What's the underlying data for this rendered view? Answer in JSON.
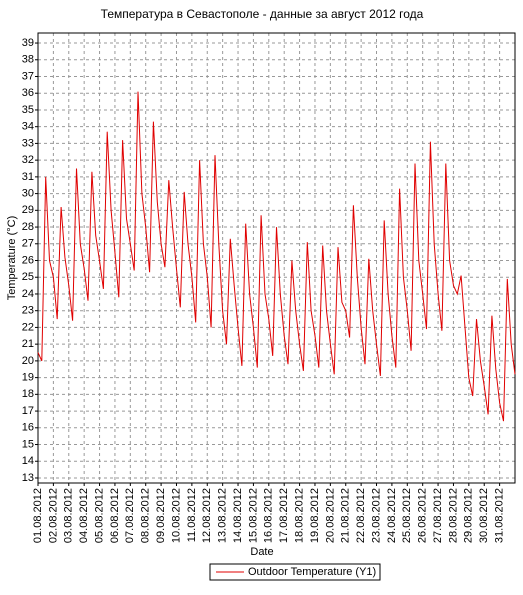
{
  "chart_data": {
    "type": "line",
    "title": "Температура в Севастополе - данные за август 2012 года",
    "x_label": "Date",
    "y_label": "Temperature (°C)",
    "categories": [
      "01.08.2012",
      null,
      null,
      null,
      "02.08.2012",
      null,
      null,
      null,
      "03.08.2012",
      null,
      null,
      null,
      "04.08.2012",
      null,
      null,
      null,
      "05.08.2012",
      null,
      null,
      null,
      "06.08.2012",
      null,
      null,
      null,
      "07.08.2012",
      null,
      null,
      null,
      "08.08.2012",
      null,
      null,
      null,
      "09.08.2012",
      null,
      null,
      null,
      "10.08.2012",
      null,
      null,
      null,
      "11.08.2012",
      null,
      null,
      null,
      "12.08.2012",
      null,
      null,
      null,
      "13.08.2012",
      null,
      null,
      null,
      "14.08.2012",
      null,
      null,
      null,
      "15.08.2012",
      null,
      null,
      null,
      "16.08.2012",
      null,
      null,
      null,
      "17.08.2012",
      null,
      null,
      null,
      "18.08.2012",
      null,
      null,
      null,
      "19.08.2012",
      null,
      null,
      null,
      "20.08.2012",
      null,
      null,
      null,
      "21.08.2012",
      null,
      null,
      null,
      "22.08.2012",
      null,
      null,
      null,
      "23.08.2012",
      null,
      null,
      null,
      "24.08.2012",
      null,
      null,
      null,
      "25.08.2012",
      null,
      null,
      null,
      "26.08.2012",
      null,
      null,
      null,
      "27.08.2012",
      null,
      null,
      null,
      "28.08.2012",
      null,
      null,
      null,
      "29.08.2012",
      null,
      null,
      null,
      "30.08.2012",
      null,
      null,
      null,
      "31.08.2012",
      null,
      null,
      null,
      null
    ],
    "series": [
      {
        "name": "Outdoor Temperature (Y1)",
        "color": "#e00000",
        "values": [
          20.5,
          20.0,
          31.0,
          26.0,
          25.0,
          22.5,
          29.2,
          26.2,
          24.5,
          22.4,
          31.5,
          27.0,
          25.5,
          23.6,
          31.3,
          27.5,
          26.0,
          24.3,
          33.7,
          29.0,
          26.5,
          23.8,
          33.2,
          28.5,
          27.0,
          25.4,
          36.1,
          30.0,
          28.0,
          25.3,
          34.3,
          29.5,
          27.0,
          25.6,
          30.8,
          28.0,
          25.5,
          23.2,
          30.1,
          27.0,
          25.0,
          22.3,
          32.0,
          27.0,
          25.0,
          22.0,
          32.3,
          27.0,
          23.0,
          21.0,
          27.3,
          24.5,
          22.0,
          19.7,
          28.2,
          24.0,
          22.0,
          19.6,
          28.7,
          24.0,
          22.5,
          20.3,
          28.0,
          24.0,
          21.5,
          19.8,
          26.0,
          23.0,
          21.0,
          19.4,
          27.1,
          23.0,
          21.5,
          19.6,
          26.9,
          23.0,
          21.0,
          19.2,
          26.8,
          23.5,
          23.0,
          21.4,
          29.3,
          25.0,
          22.0,
          19.8,
          26.1,
          23.0,
          21.0,
          19.1,
          28.4,
          24.0,
          21.5,
          19.6,
          30.3,
          25.0,
          23.0,
          20.6,
          31.8,
          26.0,
          24.0,
          21.9,
          33.1,
          27.0,
          24.0,
          21.8,
          31.8,
          26.0,
          24.5,
          24.0,
          25.1,
          22.0,
          19.0,
          17.9,
          22.5,
          20.0,
          18.5,
          16.8,
          22.7,
          19.5,
          17.5,
          16.4,
          24.9,
          21.0,
          19.2
        ]
      }
    ],
    "ylim": [
      12.7,
      39.6
    ],
    "yticks": [
      13,
      14,
      15,
      16,
      17,
      18,
      19,
      20,
      21,
      22,
      23,
      24,
      25,
      26,
      27,
      28,
      29,
      30,
      31,
      32,
      33,
      34,
      35,
      36,
      37,
      38,
      39
    ],
    "grid": true
  }
}
